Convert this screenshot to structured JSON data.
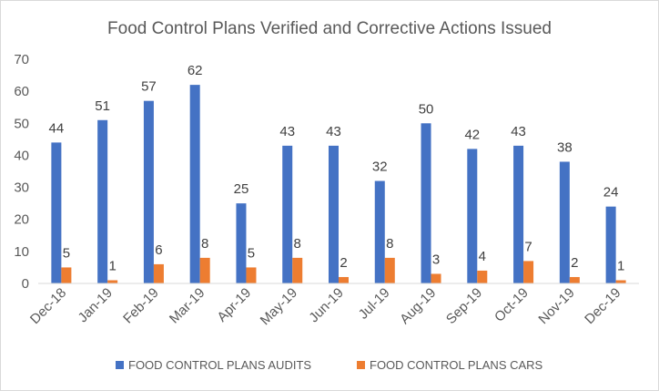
{
  "chart_data": {
    "type": "bar",
    "title": "Food Control Plans Verified and Corrective Actions Issued",
    "xlabel": "",
    "ylabel": "",
    "ylim": [
      0,
      70
    ],
    "yticks": [
      0,
      10,
      20,
      30,
      40,
      50,
      60,
      70
    ],
    "grid": false,
    "legend_position": "bottom",
    "categories": [
      "Dec-18",
      "Jan-19",
      "Feb-19",
      "Mar-19",
      "Apr-19",
      "May-19",
      "Jun-19",
      "Jul-19",
      "Aug-19",
      "Sep-19",
      "Oct-19",
      "Nov-19",
      "Dec-19"
    ],
    "series": [
      {
        "name": "FOOD CONTROL PLANS AUDITS",
        "color": "#4472C4",
        "values": [
          44,
          51,
          57,
          62,
          25,
          43,
          43,
          32,
          50,
          42,
          43,
          38,
          24
        ]
      },
      {
        "name": "FOOD CONTROL PLANS CARS",
        "color": "#ED7D31",
        "values": [
          5,
          1,
          6,
          8,
          5,
          8,
          2,
          8,
          3,
          4,
          7,
          2,
          1
        ]
      }
    ]
  }
}
